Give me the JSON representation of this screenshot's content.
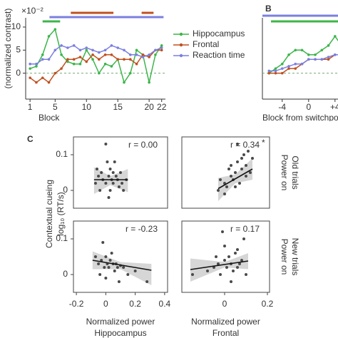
{
  "chart_data": [
    {
      "type": "line",
      "y_multiplier": "×10⁻²",
      "ylabel": "(normalized contrast)",
      "xlabel": "Block",
      "x": [
        1,
        2,
        3,
        4,
        5,
        6,
        7,
        8,
        9,
        10,
        11,
        12,
        13,
        14,
        15,
        16,
        17,
        18,
        19,
        20,
        21,
        22
      ],
      "xlim": [
        0.3,
        22.6
      ],
      "xticks": [
        1,
        5,
        10,
        15,
        20,
        22
      ],
      "ylim": [
        -5,
        12
      ],
      "yticks": [
        0,
        5,
        10
      ],
      "zero_line": true,
      "legend": "right",
      "series": [
        {
          "name": "Hippocampus",
          "color": "#3cb54a",
          "values": [
            1,
            1.5,
            4,
            8,
            9.5,
            4,
            2.5,
            2,
            2,
            5,
            3,
            0,
            2,
            1.5,
            3,
            -2,
            0,
            5,
            4,
            -2,
            4,
            6
          ],
          "significance": [
            [
              3,
              5.8
            ]
          ]
        },
        {
          "name": "Frontal",
          "color": "#c0501f",
          "values": [
            -1,
            -2,
            -1,
            -2,
            0,
            1,
            3,
            3,
            3.5,
            2.5,
            4,
            3,
            4,
            4,
            3,
            3,
            3,
            2,
            4,
            3.5,
            5,
            5
          ],
          "significance": [
            [
              7.5,
              14.3
            ],
            [
              18.8,
              20.7
            ]
          ]
        },
        {
          "name": "Reaction time",
          "color": "#7b7fe0",
          "values": [
            2,
            2,
            3,
            3,
            5,
            6,
            5.5,
            6,
            5,
            5.5,
            5,
            4.5,
            5,
            6,
            5.5,
            5,
            4,
            4,
            3.5,
            4,
            5,
            5.5
          ],
          "significance": [
            [
              4.1,
              22.3
            ]
          ]
        }
      ]
    },
    {
      "type": "line",
      "panel_label": "B",
      "xlabel": "Block from switchpoint",
      "x": [
        -6,
        -5,
        -4,
        -3,
        -2,
        -1,
        0,
        1,
        2,
        3,
        4,
        5
      ],
      "xlim": [
        -7,
        5.1
      ],
      "xticks": [
        -4,
        0,
        {
          "value": 4,
          "label": "+4"
        }
      ],
      "ylim": [
        -5,
        12
      ],
      "zero_line": true,
      "series": [
        {
          "name": "Hippocampus",
          "color": "#3cb54a",
          "values": [
            0,
            1,
            2,
            4,
            5,
            5,
            4,
            4,
            5,
            6,
            8,
            6
          ],
          "significance": [
            [
              -5.7,
              5.1
            ]
          ]
        },
        {
          "name": "Frontal",
          "color": "#c0501f",
          "values": [
            0,
            0,
            0,
            1,
            1,
            2,
            3,
            3,
            3,
            3,
            4,
            4
          ],
          "significance": []
        },
        {
          "name": "Reaction time",
          "color": "#7b7fe0",
          "values": [
            0.5,
            0.5,
            1,
            1.5,
            2,
            2,
            3,
            3,
            3,
            3.5,
            4,
            4
          ],
          "significance": [
            [
              -7,
              5.1
            ]
          ]
        }
      ]
    },
    {
      "type": "scatter",
      "panel_label": "C",
      "ylabel": [
        "Contextual cueing",
        "log₁₀ (RT/s)"
      ],
      "annotation": "r = 0.00",
      "xlim": [
        -0.22,
        0.42
      ],
      "ylim": [
        -0.05,
        0.15
      ],
      "yticks": [
        0,
        0.1
      ],
      "x": [
        -0.07,
        -0.05,
        -0.04,
        -0.03,
        -0.02,
        0,
        0,
        0.01,
        0.02,
        0.03,
        0.03,
        0.04,
        0.05,
        0.06,
        0.07,
        0.08,
        0.09,
        0.1,
        0.11,
        0.12,
        0.14,
        -0.06,
        0.02,
        0.05
      ],
      "y": [
        0.02,
        0.04,
        0,
        0.05,
        0.03,
        0.13,
        0.02,
        0.08,
        0.04,
        0,
        0.06,
        0.03,
        0.02,
        0.08,
        0.04,
        0.03,
        0.01,
        0.05,
        0.02,
        0,
        0.03,
        0.06,
        -0.02,
        0.05
      ],
      "fit": {
        "x": [
          -0.08,
          0.15
        ],
        "y": [
          0.03,
          0.03
        ]
      },
      "band": {
        "x": [
          -0.08,
          0.03,
          0.15
        ],
        "low": [
          -0.01,
          0.015,
          -0.005
        ],
        "high": [
          0.065,
          0.04,
          0.06
        ]
      }
    },
    {
      "type": "scatter",
      "annotation": "r = 0.34",
      "annotation_mark": "*",
      "row_label": [
        "Power on",
        "Old trials"
      ],
      "row_color": "#6b9bd8",
      "xlim": [
        -0.2,
        0.21
      ],
      "ylim": [
        -0.05,
        0.15
      ],
      "x": [
        -0.03,
        -0.02,
        0,
        0.01,
        0.02,
        0.03,
        0.04,
        0.05,
        0.06,
        0.07,
        0.08,
        0.09,
        0.1,
        0.11,
        0.12,
        0.13,
        0.05,
        0,
        0.03,
        0.08,
        0.1,
        0.06
      ],
      "y": [
        0,
        0.03,
        0.02,
        0.01,
        0.06,
        0.04,
        0.03,
        0.05,
        0.08,
        0.02,
        0.06,
        0.1,
        0.07,
        0.11,
        0.05,
        0.09,
        0.01,
        -0.01,
        0.07,
        0.09,
        0.04,
        0.13
      ],
      "fit": {
        "x": [
          -0.03,
          0.13
        ],
        "y": [
          0.005,
          0.06
        ]
      },
      "band": {
        "x": [
          -0.03,
          0.05,
          0.13
        ],
        "low": [
          -0.03,
          0.02,
          0.03
        ],
        "high": [
          0.035,
          0.045,
          0.09
        ]
      }
    },
    {
      "type": "scatter",
      "annotation": "r = -0.23",
      "xlabel": [
        "Normalized power",
        "Hippocampus"
      ],
      "xlabel_color": "#3cb54a",
      "xlim": [
        -0.22,
        0.42
      ],
      "xticks": [
        -0.2,
        0,
        0.2,
        0.4
      ],
      "ylim": [
        -0.05,
        0.15
      ],
      "yticks": [
        0,
        0.1
      ],
      "x": [
        -0.07,
        -0.05,
        -0.04,
        -0.03,
        -0.02,
        0,
        0.01,
        0.02,
        0.03,
        0.05,
        0.06,
        0.07,
        0.08,
        0.1,
        0.12,
        0.15,
        0.2,
        0.28,
        0,
        0.04,
        0.09,
        -0.01
      ],
      "y": [
        0.05,
        0.03,
        0,
        0.04,
        0.09,
        0.05,
        0.03,
        0.02,
        0.04,
        0.03,
        0.01,
        0.03,
        0.02,
        0.025,
        0.02,
        0,
        0.01,
        -0.02,
        -0.01,
        0.06,
        -0.02,
        0.02
      ],
      "fit": {
        "x": [
          -0.09,
          0.31
        ],
        "y": [
          0.04,
          0.012
        ]
      },
      "band": {
        "x": [
          -0.09,
          0.1,
          0.31
        ],
        "low": [
          0.015,
          0.015,
          -0.03
        ],
        "high": [
          0.065,
          0.035,
          0.03
        ]
      }
    },
    {
      "type": "scatter",
      "annotation": "r = 0.17",
      "row_label": [
        "Power on",
        "New trials"
      ],
      "row_color": "#d2773a",
      "xlabel": [
        "Normalized power",
        "Frontal"
      ],
      "xlabel_color": "#d2773a",
      "xlim": [
        -0.2,
        0.21
      ],
      "xticks": [
        0,
        0.2
      ],
      "ylim": [
        -0.05,
        0.15
      ],
      "x": [
        -0.15,
        -0.08,
        -0.05,
        -0.03,
        -0.02,
        0,
        0,
        0.01,
        0.02,
        0.03,
        0.04,
        0.05,
        0.06,
        0.07,
        0.08,
        0.09,
        0.1,
        0.03,
        -0.01,
        0.06,
        -0.04
      ],
      "y": [
        0,
        0.01,
        0.02,
        0.03,
        0,
        0.04,
        0.08,
        0.02,
        0.05,
        0.03,
        0.01,
        0.06,
        0.02,
        0.03,
        0.04,
        0.1,
        0,
        -0.02,
        0.12,
        0.07,
        0.05
      ],
      "fit": {
        "x": [
          -0.16,
          0.11
        ],
        "y": [
          0.014,
          0.038
        ]
      },
      "band": {
        "x": [
          -0.16,
          0,
          0.11
        ],
        "low": [
          -0.02,
          0.02,
          0.015
        ],
        "high": [
          0.045,
          0.035,
          0.06
        ]
      }
    }
  ]
}
